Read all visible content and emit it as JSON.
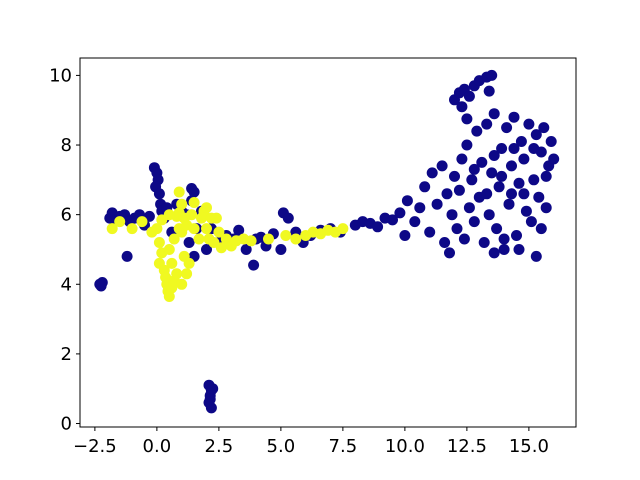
{
  "chart_data": {
    "type": "scatter",
    "title": "",
    "xlabel": "",
    "ylabel": "",
    "xlim": [
      -3.1,
      16.9
    ],
    "ylim": [
      -0.1,
      10.5
    ],
    "grid": false,
    "legend": "none",
    "x_ticks": [
      -2.5,
      0.0,
      2.5,
      5.0,
      7.5,
      10.0,
      12.5,
      15.0
    ],
    "x_tick_labels": [
      "−2.5",
      "0.0",
      "2.5",
      "5.0",
      "7.5",
      "10.0",
      "12.5",
      "15.0"
    ],
    "y_ticks": [
      0,
      2,
      4,
      6,
      8,
      10
    ],
    "y_tick_labels": [
      "0",
      "2",
      "4",
      "6",
      "8",
      "10"
    ],
    "colors": {
      "class_0": "#0d0887",
      "class_1": "#f0f921"
    },
    "series": [
      {
        "color": "#0d0887",
        "points": [
          [
            -2.3,
            4.0
          ],
          [
            -2.2,
            4.05
          ],
          [
            -2.25,
            3.95
          ],
          [
            -1.9,
            5.9
          ],
          [
            -1.8,
            6.05
          ],
          [
            -1.7,
            5.85
          ],
          [
            -1.5,
            5.95
          ],
          [
            -1.3,
            6.0
          ],
          [
            -1.1,
            5.8
          ],
          [
            -1.2,
            4.8
          ],
          [
            -0.9,
            5.9
          ],
          [
            -0.7,
            6.0
          ],
          [
            -0.5,
            5.7
          ],
          [
            -0.3,
            5.95
          ],
          [
            -0.1,
            7.35
          ],
          [
            0.0,
            7.2
          ],
          [
            0.05,
            7.0
          ],
          [
            -0.05,
            6.8
          ],
          [
            0.1,
            6.6
          ],
          [
            0.15,
            6.3
          ],
          [
            0.2,
            6.1
          ],
          [
            0.3,
            5.9
          ],
          [
            0.4,
            6.2
          ],
          [
            0.6,
            5.5
          ],
          [
            0.8,
            6.3
          ],
          [
            1.0,
            6.1
          ],
          [
            1.2,
            6.0
          ],
          [
            1.3,
            5.2
          ],
          [
            1.4,
            6.4
          ],
          [
            1.5,
            4.8
          ],
          [
            1.4,
            6.75
          ],
          [
            1.5,
            6.65
          ],
          [
            1.6,
            5.6
          ],
          [
            1.8,
            6.1
          ],
          [
            2.0,
            5.0
          ],
          [
            2.2,
            5.6
          ],
          [
            2.5,
            5.2
          ],
          [
            2.8,
            5.4
          ],
          [
            3.1,
            5.3
          ],
          [
            3.3,
            5.55
          ],
          [
            3.6,
            5.0
          ],
          [
            3.9,
            4.55
          ],
          [
            4.0,
            5.3
          ],
          [
            4.2,
            5.35
          ],
          [
            4.4,
            5.1
          ],
          [
            4.7,
            5.45
          ],
          [
            5.0,
            5.0
          ],
          [
            5.1,
            6.05
          ],
          [
            5.3,
            5.9
          ],
          [
            5.6,
            5.5
          ],
          [
            5.9,
            5.2
          ],
          [
            6.2,
            5.4
          ],
          [
            6.6,
            5.55
          ],
          [
            7.0,
            5.6
          ],
          [
            7.4,
            5.5
          ],
          [
            2.1,
            1.1
          ],
          [
            2.2,
            0.95
          ],
          [
            2.15,
            0.8
          ],
          [
            2.1,
            0.6
          ],
          [
            2.2,
            0.45
          ],
          [
            2.15,
            0.7
          ],
          [
            2.25,
            1.0
          ],
          [
            8.0,
            5.7
          ],
          [
            8.3,
            5.8
          ],
          [
            8.6,
            5.75
          ],
          [
            8.9,
            5.65
          ],
          [
            9.2,
            5.9
          ],
          [
            9.5,
            5.85
          ],
          [
            9.8,
            6.05
          ],
          [
            10.0,
            5.4
          ],
          [
            10.1,
            6.4
          ],
          [
            10.4,
            5.8
          ],
          [
            10.6,
            6.2
          ],
          [
            10.8,
            6.8
          ],
          [
            11.0,
            5.5
          ],
          [
            11.1,
            7.2
          ],
          [
            11.3,
            6.3
          ],
          [
            11.5,
            7.4
          ],
          [
            11.6,
            5.2
          ],
          [
            11.7,
            6.6
          ],
          [
            11.8,
            4.9
          ],
          [
            11.9,
            6.0
          ],
          [
            12.0,
            7.1
          ],
          [
            12.1,
            5.6
          ],
          [
            12.2,
            6.7
          ],
          [
            12.3,
            7.6
          ],
          [
            12.4,
            5.3
          ],
          [
            12.5,
            8.0
          ],
          [
            12.6,
            6.2
          ],
          [
            12.7,
            7.0
          ],
          [
            12.8,
            5.8
          ],
          [
            12.9,
            8.4
          ],
          [
            12.0,
            9.3
          ],
          [
            12.2,
            9.5
          ],
          [
            12.4,
            9.6
          ],
          [
            12.6,
            9.4
          ],
          [
            12.8,
            9.7
          ],
          [
            13.0,
            9.85
          ],
          [
            13.3,
            9.95
          ],
          [
            13.5,
            10.0
          ],
          [
            13.4,
            9.55
          ],
          [
            12.5,
            8.75
          ],
          [
            12.3,
            9.1
          ],
          [
            13.0,
            6.5
          ],
          [
            13.1,
            7.5
          ],
          [
            13.2,
            5.2
          ],
          [
            13.3,
            8.6
          ],
          [
            13.4,
            6.0
          ],
          [
            13.5,
            7.2
          ],
          [
            13.6,
            8.9
          ],
          [
            13.7,
            5.6
          ],
          [
            13.8,
            6.8
          ],
          [
            13.9,
            7.9
          ],
          [
            14.0,
            5.0
          ],
          [
            14.1,
            8.5
          ],
          [
            14.2,
            6.3
          ],
          [
            14.3,
            7.4
          ],
          [
            14.4,
            8.8
          ],
          [
            14.5,
            5.4
          ],
          [
            14.6,
            6.9
          ],
          [
            14.7,
            8.1
          ],
          [
            14.8,
            7.6
          ],
          [
            14.9,
            6.1
          ],
          [
            15.0,
            8.6
          ],
          [
            15.1,
            5.8
          ],
          [
            15.2,
            7.0
          ],
          [
            15.3,
            8.3
          ],
          [
            15.4,
            6.5
          ],
          [
            15.5,
            7.8
          ],
          [
            15.6,
            8.5
          ],
          [
            15.7,
            6.2
          ],
          [
            15.8,
            7.4
          ],
          [
            15.9,
            8.1
          ],
          [
            16.0,
            7.6
          ],
          [
            15.5,
            5.6
          ],
          [
            15.3,
            4.8
          ],
          [
            14.6,
            5.0
          ],
          [
            14.0,
            5.3
          ],
          [
            13.6,
            4.9
          ],
          [
            13.3,
            6.6
          ],
          [
            13.9,
            7.1
          ],
          [
            14.3,
            6.6
          ],
          [
            14.8,
            6.6
          ],
          [
            12.8,
            7.3
          ],
          [
            13.6,
            7.7
          ],
          [
            14.4,
            7.9
          ],
          [
            15.2,
            7.9
          ],
          [
            15.7,
            7.1
          ]
        ]
      },
      {
        "color": "#f0f921",
        "points": [
          [
            -1.8,
            5.6
          ],
          [
            -1.5,
            5.8
          ],
          [
            -1.0,
            5.6
          ],
          [
            -0.6,
            5.8
          ],
          [
            -0.2,
            5.5
          ],
          [
            0.0,
            5.6
          ],
          [
            0.1,
            5.2
          ],
          [
            0.2,
            4.9
          ],
          [
            0.1,
            4.6
          ],
          [
            0.3,
            4.4
          ],
          [
            0.35,
            4.2
          ],
          [
            0.4,
            4.0
          ],
          [
            0.45,
            3.8
          ],
          [
            0.5,
            3.65
          ],
          [
            0.6,
            3.9
          ],
          [
            0.7,
            4.1
          ],
          [
            0.8,
            4.3
          ],
          [
            0.6,
            4.6
          ],
          [
            0.5,
            5.0
          ],
          [
            0.7,
            5.3
          ],
          [
            0.9,
            5.6
          ],
          [
            0.8,
            5.95
          ],
          [
            1.0,
            5.5
          ],
          [
            1.1,
            4.8
          ],
          [
            1.2,
            4.3
          ],
          [
            1.3,
            4.6
          ],
          [
            1.0,
            4.0
          ],
          [
            0.9,
            6.05
          ],
          [
            1.0,
            6.3
          ],
          [
            0.5,
            6.0
          ],
          [
            0.2,
            5.85
          ],
          [
            1.1,
            5.9
          ],
          [
            1.2,
            5.7
          ],
          [
            1.4,
            6.0
          ],
          [
            1.5,
            5.6
          ],
          [
            1.7,
            5.3
          ],
          [
            1.8,
            5.9
          ],
          [
            1.9,
            6.1
          ],
          [
            2.0,
            5.6
          ],
          [
            2.1,
            5.3
          ],
          [
            2.2,
            5.9
          ],
          [
            2.3,
            5.2
          ],
          [
            2.5,
            5.5
          ],
          [
            2.6,
            5.05
          ],
          [
            2.8,
            5.3
          ],
          [
            3.0,
            5.1
          ],
          [
            3.2,
            5.25
          ],
          [
            3.5,
            5.3
          ],
          [
            3.8,
            5.25
          ],
          [
            4.5,
            5.3
          ],
          [
            5.2,
            5.4
          ],
          [
            5.6,
            5.3
          ],
          [
            6.0,
            5.4
          ],
          [
            6.3,
            5.5
          ],
          [
            6.6,
            5.45
          ],
          [
            6.9,
            5.55
          ],
          [
            7.2,
            5.5
          ],
          [
            7.5,
            5.6
          ],
          [
            0.9,
            6.65
          ],
          [
            1.5,
            6.35
          ],
          [
            2.0,
            6.2
          ],
          [
            2.4,
            5.9
          ]
        ]
      }
    ]
  }
}
